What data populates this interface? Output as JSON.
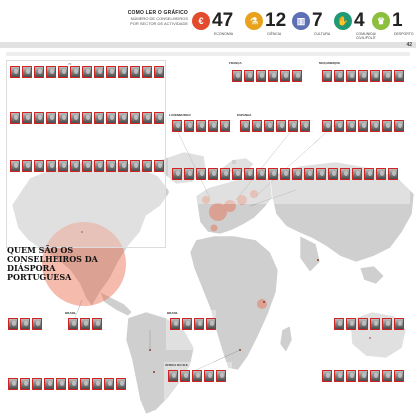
{
  "legend": {
    "heading": "COMO LER O GRÁFICO",
    "description": "NÚMERO DE CONSELHEIROS POR SECTOR DE ACTIVIDADE"
  },
  "stats": [
    {
      "count": "47",
      "label": "ECONOMIA",
      "color": "#e24b2c",
      "icon": "euro-icon",
      "glyph": "€"
    },
    {
      "count": "12",
      "label": "CIÊNCIA",
      "color": "#e8a21c",
      "icon": "flask-icon",
      "glyph": "⚗"
    },
    {
      "count": "7",
      "label": "CULTURA",
      "color": "#5d6fb5",
      "icon": "book-icon",
      "glyph": "▥"
    },
    {
      "count": "4",
      "label": "COMUNIDA/ CIVIL/POLÍT.",
      "color": "#1f9a74",
      "icon": "handshake-icon",
      "glyph": "✋"
    },
    {
      "count": "1",
      "label": "DESPORTO",
      "color": "#8dbf3f",
      "icon": "trophy-icon",
      "glyph": "♛"
    }
  ],
  "page": {
    "number": "42"
  },
  "bars": {
    "top_section": "",
    "sub_left": "",
    "sub_number": "70"
  },
  "panels": [
    {
      "title": ""
    },
    {
      "title": "FRANÇA"
    },
    {
      "title": "MOÇAMBIQUE"
    },
    {
      "title": "LUXEMBURGO"
    },
    {
      "title": "ESPANHA"
    },
    {
      "title": ""
    },
    {
      "title": ""
    },
    {
      "title": ""
    },
    {
      "title": "BRASIL"
    },
    {
      "title": "BRASIL"
    },
    {
      "title": "ÁFRICA DO SUL"
    },
    {
      "title": ""
    },
    {
      "title": ""
    },
    {
      "title": ""
    }
  ],
  "headline": "QUEM SÃO OS CONSELHEIROS DA DIÁSPORA PORTUGUESA",
  "body": "",
  "source": "",
  "colors": {
    "accent": "#e8694a",
    "map_land": "#cfcfcf",
    "map_sea": "#ffffff"
  }
}
